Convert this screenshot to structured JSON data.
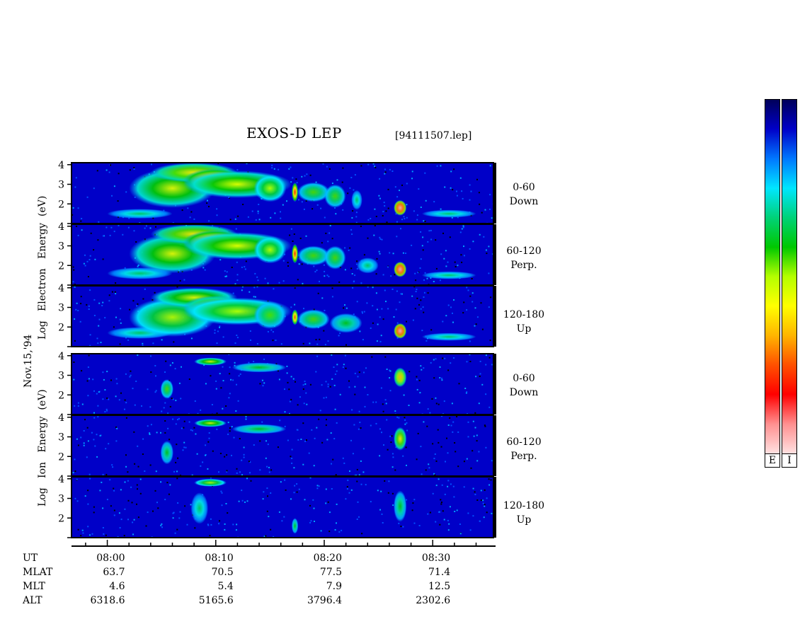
{
  "title": "EXOS-D LEP",
  "file": "[94111507.lep]",
  "date_label": "Nov.15,'94",
  "electron_ylabel": [
    "Log",
    "Electron",
    "Energy",
    "(eV)"
  ],
  "ion_ylabel": [
    "Log",
    "Ion",
    "Energy",
    "(eV)"
  ],
  "pitch_labels": [
    {
      "range": "0-60",
      "dir": "Down"
    },
    {
      "range": "60-120",
      "dir": "Perp."
    },
    {
      "range": "120-180",
      "dir": "Up"
    }
  ],
  "colorbar_labels": [
    "E",
    "I"
  ],
  "colors": {
    "background": "#0000c8",
    "cb_stops": [
      "#00005a",
      "#0000c8",
      "#0078ff",
      "#00e6ff",
      "#00d278",
      "#00c800",
      "#b4ff00",
      "#ffff00",
      "#ffb400",
      "#ff5000",
      "#ff0000",
      "#ff9090",
      "#ffe0e0"
    ]
  },
  "footer": {
    "rows": [
      {
        "name": "UT",
        "values": [
          "08:00",
          "08:10",
          "08:20",
          "08:30"
        ]
      },
      {
        "name": "MLAT",
        "values": [
          "63.7",
          "70.5",
          "77.5",
          "71.4"
        ]
      },
      {
        "name": "MLT",
        "values": [
          "4.6",
          "5.4",
          "7.9",
          "12.5"
        ]
      },
      {
        "name": "ALT",
        "values": [
          "6318.6",
          "5165.6",
          "3796.4",
          "2302.6"
        ]
      }
    ]
  },
  "chart_data": {
    "type": "heatmap",
    "x_label": "UT",
    "x_ticks": [
      "08:00",
      "08:10",
      "08:20",
      "08:30"
    ],
    "x_range_minutes": [
      -3.3,
      35.6
    ],
    "y_ticks": [
      "4",
      "3",
      "2"
    ],
    "y_range_log_eV": [
      1.0,
      4.1
    ],
    "panels": [
      {
        "species": "Electron",
        "pitch": "0-60 Down",
        "blobs": [
          [
            3,
            1.5,
            3,
            0.25,
            0.35
          ],
          [
            6,
            2.8,
            4,
            1.0,
            0.55
          ],
          [
            8,
            3.6,
            4,
            0.5,
            0.6
          ],
          [
            10,
            3.2,
            3,
            0.6,
            0.8
          ],
          [
            12,
            3,
            5,
            0.7,
            0.55
          ],
          [
            15,
            2.8,
            1.5,
            0.7,
            0.5
          ],
          [
            17.3,
            2.6,
            0.3,
            0.5,
            0.8
          ],
          [
            19,
            2.6,
            1.5,
            0.5,
            0.45
          ],
          [
            21,
            2.4,
            1.0,
            0.6,
            0.45
          ],
          [
            23,
            2.2,
            0.5,
            0.5,
            0.35
          ],
          [
            27,
            1.8,
            0.6,
            0.4,
            0.95
          ],
          [
            31.5,
            1.5,
            2.5,
            0.2,
            0.35
          ]
        ]
      },
      {
        "species": "Electron",
        "pitch": "60-120 Perp.",
        "blobs": [
          [
            3,
            1.6,
            3,
            0.3,
            0.35
          ],
          [
            6,
            2.6,
            4,
            1.0,
            0.55
          ],
          [
            8,
            3.6,
            4,
            0.5,
            0.6
          ],
          [
            10,
            3.2,
            3,
            0.6,
            0.8
          ],
          [
            12,
            3,
            5,
            0.7,
            0.55
          ],
          [
            15,
            2.8,
            1.5,
            0.7,
            0.5
          ],
          [
            17.3,
            2.6,
            0.3,
            0.5,
            0.8
          ],
          [
            19,
            2.5,
            1.5,
            0.5,
            0.45
          ],
          [
            21,
            2.4,
            1.0,
            0.6,
            0.45
          ],
          [
            24,
            2.0,
            1.0,
            0.4,
            0.35
          ],
          [
            27,
            1.8,
            0.6,
            0.4,
            0.95
          ],
          [
            31.5,
            1.5,
            2.5,
            0.2,
            0.35
          ]
        ]
      },
      {
        "species": "Electron",
        "pitch": "120-180 Up",
        "blobs": [
          [
            3,
            1.7,
            3,
            0.3,
            0.35
          ],
          [
            6,
            2.5,
            4,
            1.0,
            0.5
          ],
          [
            8,
            3.5,
            4,
            0.5,
            0.55
          ],
          [
            10,
            3.0,
            3,
            0.6,
            0.6
          ],
          [
            12,
            2.8,
            5,
            0.7,
            0.5
          ],
          [
            15,
            2.6,
            1.5,
            0.7,
            0.45
          ],
          [
            17.3,
            2.5,
            0.3,
            0.4,
            0.75
          ],
          [
            19,
            2.4,
            1.5,
            0.5,
            0.45
          ],
          [
            22,
            2.2,
            1.5,
            0.5,
            0.4
          ],
          [
            27,
            1.8,
            0.6,
            0.4,
            0.95
          ],
          [
            31.5,
            1.5,
            2.5,
            0.2,
            0.35
          ]
        ]
      },
      {
        "species": "Ion",
        "pitch": "0-60 Down",
        "blobs": [
          [
            9.5,
            3.7,
            1.5,
            0.2,
            0.55
          ],
          [
            14,
            3.4,
            2.5,
            0.25,
            0.4
          ],
          [
            5.5,
            2.3,
            0.6,
            0.5,
            0.45
          ],
          [
            27,
            2.9,
            0.6,
            0.5,
            0.65
          ]
        ]
      },
      {
        "species": "Ion",
        "pitch": "60-120 Perp.",
        "blobs": [
          [
            9.5,
            3.7,
            1.5,
            0.2,
            0.55
          ],
          [
            14,
            3.4,
            2.5,
            0.25,
            0.4
          ],
          [
            5.5,
            2.2,
            0.6,
            0.6,
            0.4
          ],
          [
            27,
            2.9,
            0.6,
            0.6,
            0.6
          ]
        ]
      },
      {
        "species": "Ion",
        "pitch": "120-180 Up",
        "blobs": [
          [
            9.5,
            3.8,
            1.5,
            0.2,
            0.5
          ],
          [
            8.5,
            2.5,
            0.8,
            0.8,
            0.35
          ],
          [
            17.3,
            1.6,
            0.3,
            0.4,
            0.4
          ],
          [
            27,
            2.6,
            0.6,
            0.8,
            0.4
          ]
        ]
      }
    ]
  }
}
